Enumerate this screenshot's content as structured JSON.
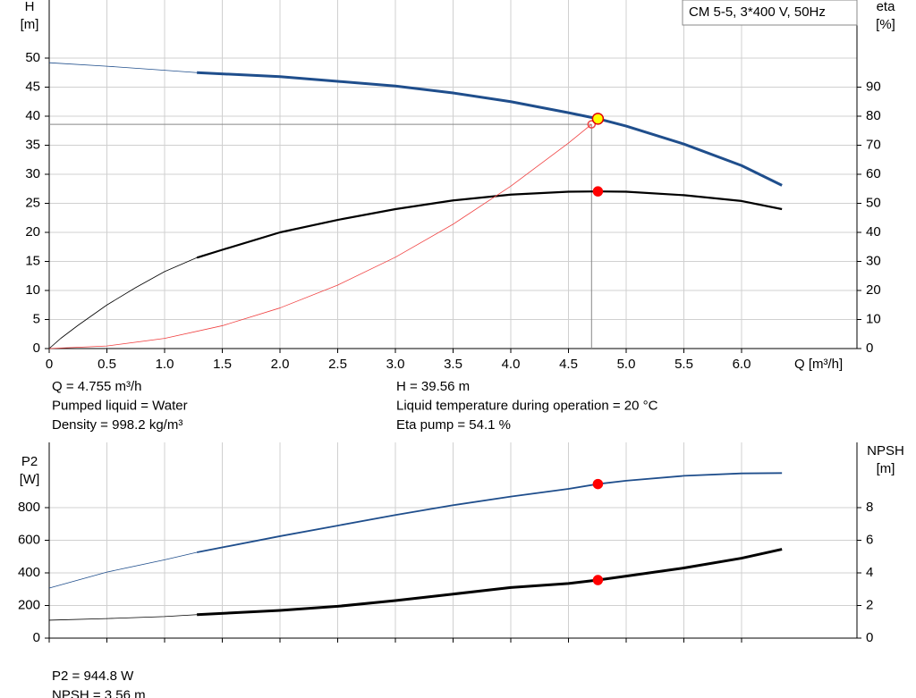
{
  "chart_data": [
    {
      "type": "line",
      "title": "CM 5-5, 3*400 V, 50Hz",
      "x_label": "Q [m³/h]",
      "y_label": "H",
      "y_unit": "[m]",
      "y2_label": "eta",
      "y2_unit": "[%]",
      "xlim": [
        0,
        7
      ],
      "show_xtick_labels": true,
      "xticks": [
        0,
        0.5,
        {
          "value": 1,
          "label": "1.0"
        },
        1.5,
        {
          "value": 2,
          "label": "2.0"
        },
        2.5,
        {
          "value": 3,
          "label": "3.0"
        },
        3.5,
        {
          "value": 4,
          "label": "4.0"
        },
        4.5,
        {
          "value": 5,
          "label": "5.0"
        },
        5.5,
        {
          "value": 6,
          "label": "6.0"
        }
      ],
      "ylim": [
        0,
        60
      ],
      "yticks": [
        0,
        5,
        10,
        15,
        20,
        25,
        30,
        35,
        40,
        45,
        50
      ],
      "y2lim": [
        0,
        120
      ],
      "y2ticks": [
        0,
        10,
        20,
        30,
        40,
        50,
        60,
        70,
        80,
        90
      ],
      "grid": true,
      "series": [
        {
          "color": "#1f4e8c",
          "width": 0.8,
          "axis": "y",
          "x": [
            0,
            0.5,
            1,
            1.28
          ],
          "values": [
            49.2,
            48.6,
            47.9,
            47.5
          ]
        },
        {
          "color": "#1f4e8c",
          "width": 3,
          "axis": "y",
          "x": [
            1.28,
            2,
            2.5,
            3,
            3.5,
            4,
            4.5,
            4.755,
            5,
            5.5,
            6,
            6.35
          ],
          "values": [
            47.5,
            46.8,
            46,
            45.2,
            44,
            42.5,
            40.6,
            39.56,
            38.3,
            35.2,
            31.5,
            28.1
          ]
        },
        {
          "color": "#000000",
          "width": 0.8,
          "axis": "y2",
          "x": [
            0,
            0.1,
            0.25,
            0.5,
            0.75,
            1,
            1.28
          ],
          "values": [
            0,
            3.5,
            8,
            15,
            21,
            26.5,
            31.3
          ]
        },
        {
          "color": "#000000",
          "width": 2.2,
          "axis": "y2",
          "x": [
            1.28,
            1.5,
            2,
            2.5,
            3,
            3.5,
            4,
            4.5,
            4.755,
            5,
            5.5,
            6,
            6.35
          ],
          "values": [
            31.3,
            34,
            40,
            44.3,
            48,
            51,
            53,
            54,
            54.1,
            54,
            52.8,
            50.8,
            48
          ]
        },
        {
          "color": "#f04040",
          "width": 0.8,
          "axis": "y",
          "x": [
            0,
            0.5,
            1,
            1.5,
            2,
            2.5,
            3,
            3.5,
            4,
            4.5,
            4.7
          ],
          "values": [
            0,
            0.44,
            1.75,
            3.93,
            6.99,
            10.92,
            15.72,
            21.4,
            27.95,
            35.38,
            38.6
          ]
        }
      ],
      "guides": [
        {
          "x": 4.7,
          "y": 38.6,
          "color": "#888888"
        }
      ],
      "points": [
        {
          "x": 4.7,
          "y": 38.6,
          "axis": "y",
          "fill": "none",
          "stroke": "#f04040",
          "r": 4
        },
        {
          "x": 4.755,
          "y": 39.56,
          "axis": "y",
          "fill": "#ffff00",
          "stroke": "#e00000",
          "r": 6
        },
        {
          "x": 4.755,
          "y": 54.1,
          "axis": "y2",
          "fill": "#ff0000",
          "stroke": "#ff0000",
          "r": 5
        }
      ],
      "info": [
        [
          "Q = 4.755 m³/h",
          "Pumped liquid = Water",
          "Density = 998.2 kg/m³"
        ],
        [
          "H = 39.56 m",
          "Liquid temperature during operation = 20 °C",
          "Eta pump = 54.1 %"
        ]
      ]
    },
    {
      "type": "line",
      "y_label": "P2",
      "y_unit": "[W]",
      "y2_label": "NPSH",
      "y2_unit": "[m]",
      "xlim": [
        0,
        7
      ],
      "show_xtick_labels": false,
      "xticks": [
        0,
        0.5,
        1,
        1.5,
        2,
        2.5,
        3,
        3.5,
        4,
        4.5,
        5,
        5.5,
        6
      ],
      "ylim": [
        0,
        1200
      ],
      "yticks": [
        0,
        200,
        400,
        600,
        800
      ],
      "y2lim": [
        0,
        12
      ],
      "y2ticks": [
        0,
        2,
        4,
        6,
        8
      ],
      "grid": true,
      "series": [
        {
          "color": "#1f4e8c",
          "width": 0.8,
          "axis": "y",
          "x": [
            0,
            0.5,
            1,
            1.28
          ],
          "values": [
            307,
            405,
            480,
            526
          ]
        },
        {
          "color": "#1f4e8c",
          "width": 1.8,
          "axis": "y",
          "x": [
            1.28,
            2,
            2.5,
            3,
            3.5,
            4,
            4.5,
            4.755,
            5,
            5.5,
            6,
            6.35
          ],
          "values": [
            526,
            625,
            690,
            755,
            815,
            868,
            915,
            944.8,
            965,
            995,
            1010,
            1012
          ]
        },
        {
          "color": "#000000",
          "width": 0.8,
          "axis": "y2",
          "x": [
            0,
            0.5,
            1,
            1.28
          ],
          "values": [
            1.1,
            1.2,
            1.32,
            1.44
          ]
        },
        {
          "color": "#000000",
          "width": 3,
          "axis": "y2",
          "x": [
            1.28,
            2,
            2.5,
            3,
            3.5,
            4,
            4.5,
            4.755,
            5,
            5.5,
            6,
            6.35
          ],
          "values": [
            1.44,
            1.7,
            1.95,
            2.3,
            2.7,
            3.1,
            3.35,
            3.56,
            3.8,
            4.3,
            4.9,
            5.45
          ]
        }
      ],
      "points": [
        {
          "x": 4.755,
          "y": 944.8,
          "axis": "y",
          "fill": "#ff0000",
          "stroke": "#ff0000",
          "r": 5
        },
        {
          "x": 4.755,
          "y": 3.56,
          "axis": "y2",
          "fill": "#ff0000",
          "stroke": "#ff0000",
          "r": 5
        }
      ],
      "info": [
        [
          "P2 = 944.8 W",
          "NPSH = 3.56 m"
        ]
      ]
    }
  ]
}
